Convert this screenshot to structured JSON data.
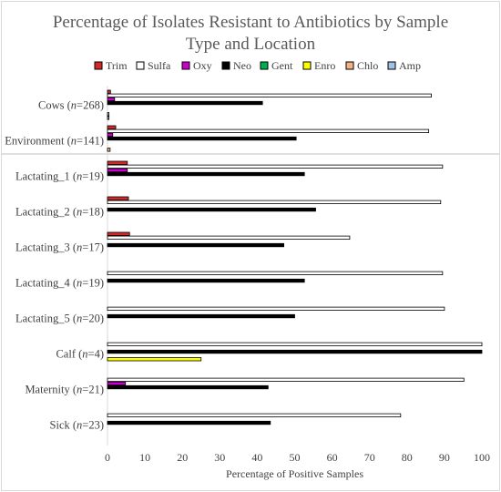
{
  "chart_data": {
    "type": "bar",
    "orientation": "horizontal",
    "title": "Percentage of Isolates Resistant to Antibiotics by Sample Type and Location",
    "title_lines": [
      "Percentage of Isolates Resistant to Antibiotics by Sample",
      "Type and Location"
    ],
    "xlabel": "Percentage of Positive Samples",
    "ylabel": "",
    "xlim": [
      0,
      100
    ],
    "xticks": [
      "0",
      "10",
      "20",
      "30",
      "40",
      "50",
      "60",
      "70",
      "80",
      "90",
      "100"
    ],
    "grid": false,
    "legend_position": "top",
    "categories": [
      {
        "name": "Cows",
        "n": "268"
      },
      {
        "name": "Environment",
        "n": "141"
      },
      {
        "name": "Lactating_1",
        "n": "19"
      },
      {
        "name": "Lactating_2",
        "n": "18"
      },
      {
        "name": "Lactating_3",
        "n": "17"
      },
      {
        "name": "Lactating_4",
        "n": "19"
      },
      {
        "name": "Lactating_5",
        "n": "20"
      },
      {
        "name": "Calf",
        "n": "4"
      },
      {
        "name": "Maternity",
        "n": "21"
      },
      {
        "name": "Sick",
        "n": "23"
      }
    ],
    "n_prefix": "(",
    "n_symbol": "n",
    "n_equals": "=",
    "n_suffix": ")",
    "series": [
      {
        "name": "Trim",
        "color": "#d62728",
        "values": [
          0.8,
          2.2,
          5.3,
          5.6,
          5.9,
          0,
          0,
          0,
          0,
          0
        ]
      },
      {
        "name": "Sulfa",
        "color": "#ffffff",
        "values": [
          86.5,
          85.8,
          89.5,
          89.0,
          64.7,
          89.5,
          90.0,
          100,
          95.2,
          78.3
        ]
      },
      {
        "name": "Oxy",
        "color": "#cc00cc",
        "values": [
          1.9,
          1.4,
          5.3,
          0,
          0,
          0,
          0,
          0,
          4.8,
          0
        ]
      },
      {
        "name": "Neo",
        "color": "#000000",
        "values": [
          41.4,
          50.4,
          52.6,
          55.6,
          47.1,
          52.6,
          50.0,
          100,
          42.9,
          43.5
        ]
      },
      {
        "name": "Gent",
        "color": "#00b050",
        "values": [
          0,
          0,
          0,
          0,
          0,
          0,
          0,
          0,
          0,
          0
        ]
      },
      {
        "name": "Enro",
        "color": "#ffff00",
        "values": [
          0,
          0,
          0,
          0,
          0,
          0,
          0,
          25.0,
          0,
          0
        ]
      },
      {
        "name": "Chlo",
        "color": "#f4b183",
        "values": [
          0.4,
          0.7,
          0,
          0,
          0,
          0,
          0,
          0,
          0,
          0
        ]
      },
      {
        "name": "Amp",
        "color": "#9dc3e6",
        "values": [
          0.4,
          0,
          0,
          0,
          0,
          0,
          0,
          0,
          0,
          0
        ]
      }
    ]
  }
}
